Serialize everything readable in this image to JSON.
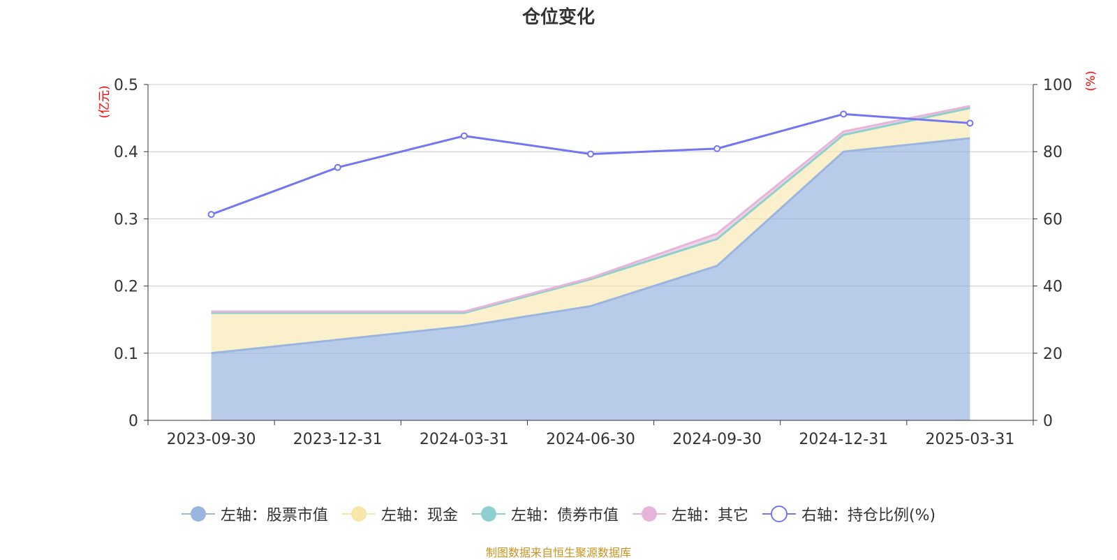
{
  "title": "仓位变化",
  "source": "制图数据来自恒生聚源数据库",
  "colors": {
    "stock": "#9ab6e0",
    "cash": "#f7e6a8",
    "bond": "#8ecfcf",
    "other": "#e7b5d9",
    "ratio": "#7276f0",
    "axis_unit": "#ff0000",
    "source": "#c9941e",
    "grid": "#c9c9c9",
    "text": "#333333"
  },
  "chart_data": {
    "type": "area",
    "title": "仓位变化",
    "categories": [
      "2023-09-30",
      "2023-12-31",
      "2024-03-31",
      "2024-06-30",
      "2024-09-30",
      "2024-12-31",
      "2025-03-31"
    ],
    "left_axis": {
      "unit_label": "(亿元)",
      "range": [
        0,
        0.5
      ],
      "ticks": [
        "0",
        "0.1",
        "0.2",
        "0.3",
        "0.4",
        "0.5"
      ]
    },
    "right_axis": {
      "unit_label": "(%)",
      "range": [
        0,
        100
      ],
      "ticks": [
        "0",
        "20",
        "40",
        "60",
        "80",
        "100"
      ]
    },
    "grid": true,
    "legend_position": "bottom",
    "stacked": true,
    "series": [
      {
        "name": "左轴：股票市值",
        "axis": "left",
        "icon": "filled-circle",
        "color_key": "stock",
        "values": [
          0.1,
          0.12,
          0.14,
          0.17,
          0.23,
          0.4,
          0.42
        ]
      },
      {
        "name": "左轴：现金",
        "axis": "left",
        "icon": "filled-circle",
        "color_key": "cash",
        "values": [
          0.06,
          0.04,
          0.02,
          0.04,
          0.04,
          0.025,
          0.045
        ]
      },
      {
        "name": "左轴：债券市值",
        "axis": "left",
        "icon": "filled-circle",
        "color_key": "bond",
        "values": [
          0,
          0,
          0,
          0,
          0,
          0,
          0
        ]
      },
      {
        "name": "左轴：其它",
        "axis": "left",
        "icon": "filled-circle",
        "color_key": "other",
        "values": [
          0.002,
          0.002,
          0.002,
          0.002,
          0.008,
          0.005,
          0.003
        ]
      },
      {
        "name": "右轴：持仓比例(%)",
        "axis": "right",
        "icon": "hollow-circle",
        "color_key": "ratio",
        "values": [
          61.3,
          75.3,
          84.7,
          79.3,
          80.9,
          91.2,
          88.5
        ]
      }
    ]
  }
}
